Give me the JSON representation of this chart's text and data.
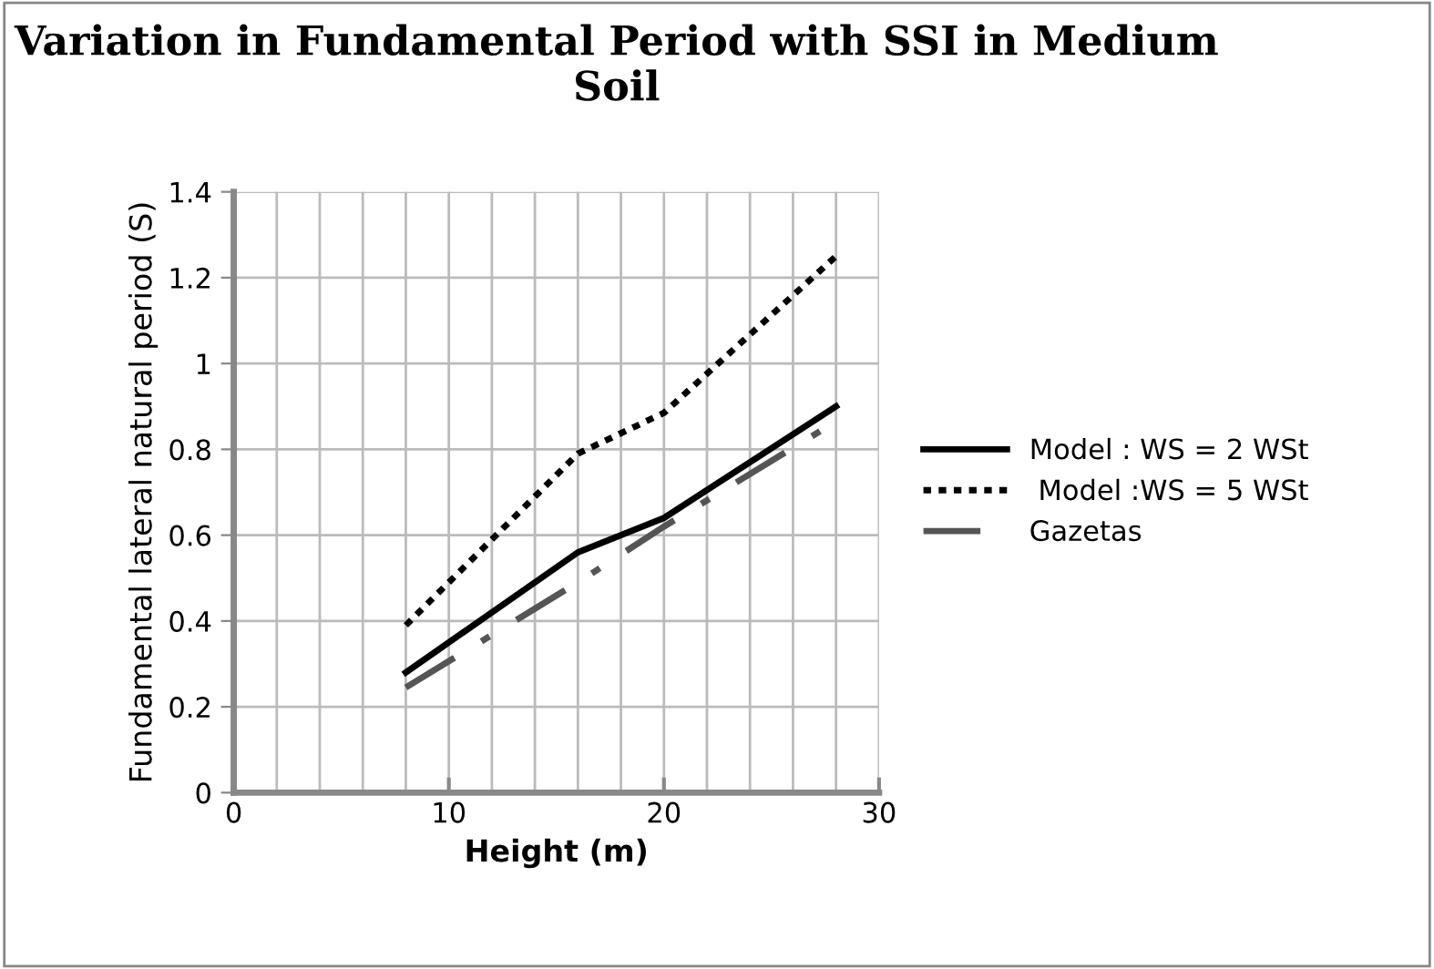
{
  "chart_data": {
    "type": "line",
    "title": "Variation in Fundamental Period with SSI in Medium Soil",
    "xlabel": "Height (m)",
    "ylabel": "Fundamental lateral natural period (S)",
    "x": [
      8,
      16,
      20,
      28
    ],
    "series": [
      {
        "name": "Model : WS = 2 WSt",
        "color": "#000000",
        "line_style": "solid",
        "values": [
          0.28,
          0.56,
          0.64,
          0.9
        ]
      },
      {
        "name": " Model :WS = 5 WSt",
        "color": "#000000",
        "line_style": "dotted",
        "values": [
          0.39,
          0.79,
          0.885,
          1.25
        ]
      },
      {
        "name": "Gazetas",
        "color": "#555555",
        "line_style": "dashdot",
        "values": [
          0.245,
          0.49,
          0.62,
          0.865
        ]
      }
    ],
    "xlim": [
      0,
      30
    ],
    "ylim": [
      0,
      1.4
    ],
    "xticks": [
      0,
      {
        "value": 2,
        "label": null
      },
      {
        "value": 4,
        "label": null
      },
      {
        "value": 6,
        "label": null
      },
      {
        "value": 8,
        "label": null
      },
      10,
      {
        "value": 12,
        "label": null
      },
      {
        "value": 14,
        "label": null
      },
      {
        "value": 16,
        "label": null
      },
      {
        "value": 18,
        "label": null
      },
      20,
      {
        "value": 22,
        "label": null
      },
      {
        "value": 24,
        "label": null
      },
      {
        "value": 26,
        "label": null
      },
      {
        "value": 28,
        "label": null
      },
      30
    ],
    "yticks": [
      0,
      0.2,
      0.4,
      0.6,
      0.8,
      1,
      1.2,
      1.4
    ],
    "grid": true,
    "legend": "right",
    "marker": "none"
  }
}
